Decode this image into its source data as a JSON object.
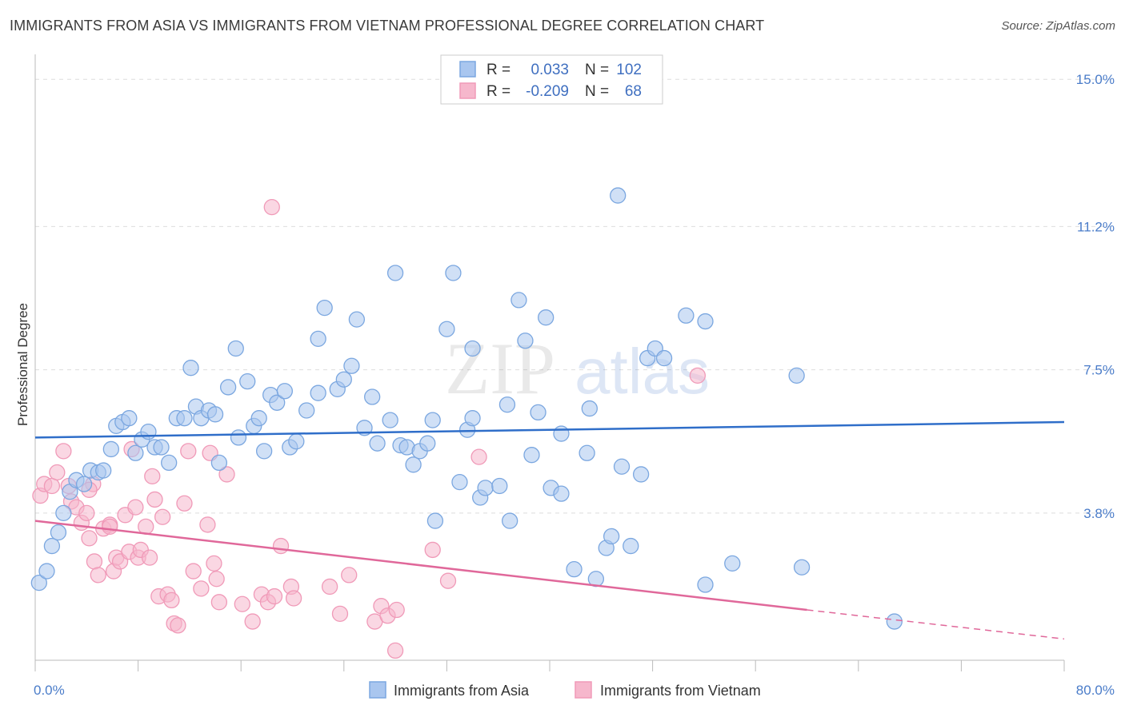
{
  "header": {
    "title": "IMMIGRANTS FROM ASIA VS IMMIGRANTS FROM VIETNAM PROFESSIONAL DEGREE CORRELATION CHART",
    "source": "Source: ZipAtlas.com"
  },
  "watermark": {
    "zip": "ZIP",
    "atlas": "atlas"
  },
  "legend": {
    "rows": [
      {
        "r_label": "R =",
        "r_value": "0.033",
        "n_label": "N =",
        "n_value": "102",
        "color": "#7ba7e0"
      },
      {
        "r_label": "R =",
        "r_value": "-0.209",
        "n_label": "N =",
        "n_value": "68",
        "color": "#f09ab8"
      }
    ]
  },
  "colors": {
    "asia_fill": "#a9c6ef",
    "asia_stroke": "#7ba7e0",
    "asia_line": "#2f6ec9",
    "vietnam_fill": "#f6b7cc",
    "vietnam_stroke": "#f09ab8",
    "vietnam_line": "#e0689a",
    "grid": "#dddddd",
    "tick_text": "#4a7cc9"
  },
  "chart_data": {
    "type": "scatter",
    "title": "IMMIGRANTS FROM ASIA VS IMMIGRANTS FROM VIETNAM PROFESSIONAL DEGREE CORRELATION CHART",
    "xlabel": "",
    "ylabel": "Professional Degree",
    "xlim": [
      0,
      80
    ],
    "ylim": [
      0,
      15.5
    ],
    "x_tick_labels": [
      "0.0%",
      "80.0%"
    ],
    "y_ticks": [
      3.8,
      7.5,
      11.2,
      15.0
    ],
    "y_tick_labels": [
      "3.8%",
      "7.5%",
      "11.2%",
      "15.0%"
    ],
    "grid": "horizontal dashed",
    "legend_placement": "top-center",
    "series": [
      {
        "name": "Immigrants from Asia",
        "trend": [
          [
            0,
            5.75
          ],
          [
            80,
            6.15
          ]
        ],
        "points": [
          [
            0.3,
            2.0
          ],
          [
            0.9,
            2.3
          ],
          [
            1.3,
            2.95
          ],
          [
            1.8,
            3.3
          ],
          [
            2.2,
            3.8
          ],
          [
            2.7,
            4.35
          ],
          [
            3.2,
            4.65
          ],
          [
            3.8,
            4.55
          ],
          [
            4.3,
            4.9
          ],
          [
            4.9,
            4.85
          ],
          [
            5.3,
            4.9
          ],
          [
            5.9,
            5.45
          ],
          [
            6.3,
            6.05
          ],
          [
            6.8,
            6.15
          ],
          [
            7.3,
            6.25
          ],
          [
            7.8,
            5.35
          ],
          [
            8.3,
            5.7
          ],
          [
            8.8,
            5.9
          ],
          [
            9.3,
            5.5
          ],
          [
            9.8,
            5.5
          ],
          [
            10.4,
            5.1
          ],
          [
            11.0,
            6.25
          ],
          [
            11.6,
            6.25
          ],
          [
            12.1,
            7.55
          ],
          [
            12.5,
            6.55
          ],
          [
            12.9,
            6.25
          ],
          [
            13.5,
            6.45
          ],
          [
            14.0,
            6.35
          ],
          [
            14.3,
            5.1
          ],
          [
            15.0,
            7.05
          ],
          [
            15.6,
            8.05
          ],
          [
            15.8,
            5.75
          ],
          [
            16.5,
            7.2
          ],
          [
            17.0,
            6.05
          ],
          [
            17.4,
            6.25
          ],
          [
            17.8,
            5.4
          ],
          [
            18.3,
            6.85
          ],
          [
            18.8,
            6.65
          ],
          [
            19.4,
            6.95
          ],
          [
            19.8,
            5.5
          ],
          [
            20.3,
            5.65
          ],
          [
            21.1,
            6.45
          ],
          [
            22.0,
            8.3
          ],
          [
            22.5,
            9.1
          ],
          [
            22.0,
            6.9
          ],
          [
            23.5,
            7.0
          ],
          [
            24.0,
            7.25
          ],
          [
            24.6,
            7.6
          ],
          [
            25.0,
            8.8
          ],
          [
            25.6,
            6.0
          ],
          [
            26.2,
            6.8
          ],
          [
            26.6,
            5.6
          ],
          [
            27.6,
            6.2
          ],
          [
            28.0,
            10.0
          ],
          [
            28.4,
            5.55
          ],
          [
            28.9,
            5.5
          ],
          [
            29.4,
            5.05
          ],
          [
            29.9,
            5.4
          ],
          [
            30.5,
            5.6
          ],
          [
            30.9,
            6.2
          ],
          [
            31.1,
            3.6
          ],
          [
            32.0,
            8.55
          ],
          [
            32.5,
            10.0
          ],
          [
            33.0,
            4.6
          ],
          [
            33.6,
            5.95
          ],
          [
            34.0,
            8.05
          ],
          [
            34.0,
            6.25
          ],
          [
            34.6,
            4.2
          ],
          [
            35.0,
            4.45
          ],
          [
            36.1,
            4.5
          ],
          [
            36.7,
            6.6
          ],
          [
            36.9,
            3.6
          ],
          [
            37.6,
            9.3
          ],
          [
            38.1,
            8.25
          ],
          [
            38.6,
            5.3
          ],
          [
            39.1,
            6.4
          ],
          [
            39.7,
            8.85
          ],
          [
            40.1,
            4.45
          ],
          [
            40.9,
            4.3
          ],
          [
            40.9,
            5.85
          ],
          [
            41.9,
            2.35
          ],
          [
            42.9,
            5.35
          ],
          [
            43.1,
            6.5
          ],
          [
            43.6,
            2.1
          ],
          [
            44.4,
            2.9
          ],
          [
            44.8,
            3.2
          ],
          [
            45.3,
            12.0
          ],
          [
            45.6,
            5.0
          ],
          [
            46.3,
            2.95
          ],
          [
            47.1,
            4.8
          ],
          [
            47.6,
            7.8
          ],
          [
            48.2,
            8.05
          ],
          [
            48.9,
            7.8
          ],
          [
            50.6,
            8.9
          ],
          [
            52.1,
            8.75
          ],
          [
            52.1,
            1.95
          ],
          [
            54.2,
            2.5
          ],
          [
            59.2,
            7.35
          ],
          [
            59.6,
            2.4
          ],
          [
            66.8,
            1.0
          ]
        ]
      },
      {
        "name": "Immigrants from Vietnam",
        "trend": [
          [
            0,
            3.6
          ],
          [
            60,
            1.3
          ]
        ],
        "trend_dashed": [
          [
            60,
            1.3
          ],
          [
            80,
            0.55
          ]
        ],
        "points": [
          [
            0.4,
            4.25
          ],
          [
            0.7,
            4.55
          ],
          [
            1.3,
            4.5
          ],
          [
            1.7,
            4.85
          ],
          [
            2.2,
            5.4
          ],
          [
            2.6,
            4.5
          ],
          [
            2.8,
            4.1
          ],
          [
            3.2,
            3.95
          ],
          [
            3.6,
            3.55
          ],
          [
            4.0,
            3.8
          ],
          [
            4.2,
            3.15
          ],
          [
            4.5,
            4.55
          ],
          [
            4.2,
            4.4
          ],
          [
            4.6,
            2.55
          ],
          [
            4.9,
            2.2
          ],
          [
            5.3,
            3.4
          ],
          [
            5.8,
            3.5
          ],
          [
            5.8,
            3.45
          ],
          [
            6.1,
            2.3
          ],
          [
            6.3,
            2.65
          ],
          [
            6.6,
            2.55
          ],
          [
            7.0,
            3.75
          ],
          [
            7.3,
            2.8
          ],
          [
            7.5,
            5.45
          ],
          [
            7.8,
            3.95
          ],
          [
            8.0,
            2.65
          ],
          [
            8.2,
            2.85
          ],
          [
            8.6,
            3.45
          ],
          [
            8.9,
            2.65
          ],
          [
            9.1,
            4.75
          ],
          [
            9.3,
            4.15
          ],
          [
            9.6,
            1.65
          ],
          [
            9.9,
            3.7
          ],
          [
            10.3,
            1.7
          ],
          [
            10.6,
            1.55
          ],
          [
            10.8,
            0.95
          ],
          [
            11.1,
            0.9
          ],
          [
            11.6,
            4.05
          ],
          [
            11.9,
            5.4
          ],
          [
            12.3,
            2.3
          ],
          [
            12.9,
            1.85
          ],
          [
            13.4,
            3.5
          ],
          [
            13.6,
            5.35
          ],
          [
            13.9,
            2.5
          ],
          [
            14.1,
            2.1
          ],
          [
            14.3,
            1.5
          ],
          [
            14.9,
            4.8
          ],
          [
            16.1,
            1.45
          ],
          [
            16.9,
            1.0
          ],
          [
            17.6,
            1.7
          ],
          [
            18.1,
            1.5
          ],
          [
            18.6,
            1.65
          ],
          [
            18.4,
            11.7
          ],
          [
            19.1,
            2.95
          ],
          [
            19.9,
            1.9
          ],
          [
            20.1,
            1.6
          ],
          [
            22.9,
            1.9
          ],
          [
            23.7,
            1.2
          ],
          [
            24.4,
            2.2
          ],
          [
            26.4,
            1.0
          ],
          [
            26.9,
            1.4
          ],
          [
            27.4,
            1.15
          ],
          [
            28.0,
            0.25
          ],
          [
            28.1,
            1.3
          ],
          [
            30.9,
            2.85
          ],
          [
            32.1,
            2.05
          ],
          [
            34.5,
            5.25
          ],
          [
            51.5,
            7.35
          ]
        ]
      }
    ]
  },
  "bottom_legend": {
    "items": [
      {
        "label": "Immigrants from Asia"
      },
      {
        "label": "Immigrants from Vietnam"
      }
    ]
  }
}
